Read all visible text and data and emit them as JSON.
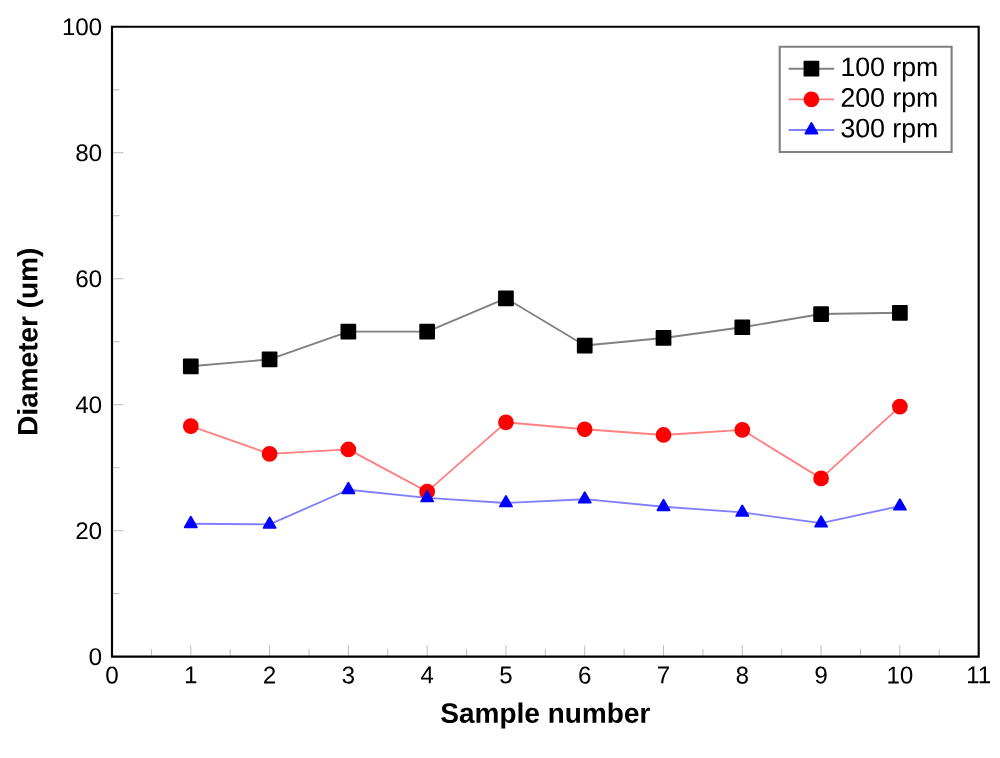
{
  "chart_data": {
    "type": "line",
    "xlabel": "Sample number",
    "ylabel": "Diameter (um)",
    "x": [
      1,
      2,
      3,
      4,
      5,
      6,
      7,
      8,
      9,
      10
    ],
    "xlim": [
      0,
      11
    ],
    "xticks": [
      0,
      1,
      2,
      3,
      4,
      5,
      6,
      7,
      8,
      9,
      10,
      11
    ],
    "ylim": [
      0,
      100
    ],
    "yticks": [
      0,
      20,
      40,
      60,
      80,
      100
    ],
    "legend": "top right",
    "grid": false,
    "series": [
      {
        "name": "100 rpm",
        "color": "#000000",
        "marker": "square",
        "values": [
          46.1,
          47.2,
          51.6,
          51.6,
          56.9,
          49.4,
          50.6,
          52.3,
          54.4,
          54.6
        ]
      },
      {
        "name": "200 rpm",
        "color": "#ff0000",
        "marker": "circle",
        "values": [
          36.6,
          32.2,
          32.9,
          26.2,
          37.2,
          36.1,
          35.2,
          36.0,
          28.3,
          39.7
        ]
      },
      {
        "name": "300 rpm",
        "color": "#0000ff",
        "marker": "triangle",
        "values": [
          21.1,
          21.0,
          26.5,
          25.2,
          24.4,
          25.0,
          23.8,
          22.9,
          21.2,
          23.9
        ]
      }
    ]
  }
}
